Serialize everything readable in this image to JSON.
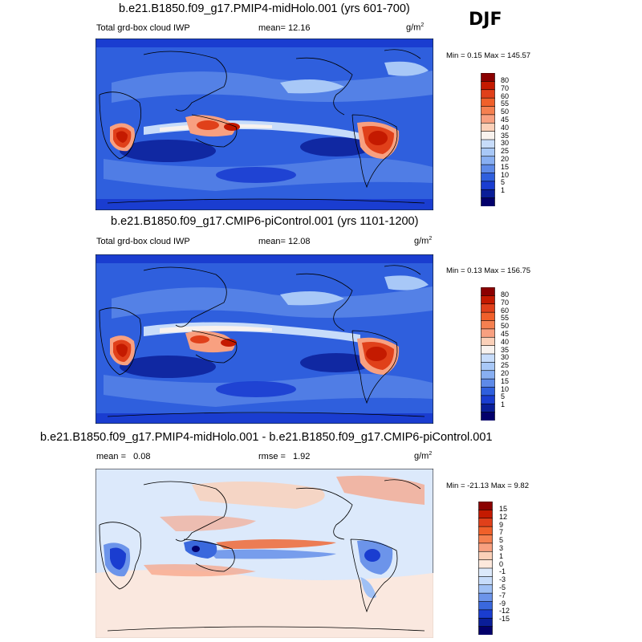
{
  "season": "DJF",
  "panels": [
    {
      "title": "b.e21.B1850.f09_g17.PMIP4-midHolo.001 (yrs 601-700)",
      "variable": "Total grd-box cloud IWP",
      "mean_label": "mean=",
      "mean": "12.16",
      "units_base": "g/m",
      "units_exp": "2",
      "minmax": "Min =  0.15 Max = 145.57",
      "levels": [
        "80",
        "70",
        "60",
        "55",
        "50",
        "45",
        "40",
        "35",
        "30",
        "25",
        "20",
        "15",
        "10",
        "5",
        "1"
      ],
      "colors": [
        "#8b0000",
        "#c41a00",
        "#e0401a",
        "#f0602a",
        "#f58050",
        "#f8a080",
        "#fbd0b8",
        "#f8f2ee",
        "#c7dcfa",
        "#a8c8f7",
        "#88aff2",
        "#5e8ae8",
        "#2f5fdd",
        "#1a3dd0",
        "#0a1e98",
        "#03006b"
      ]
    },
    {
      "title": "b.e21.B1850.f09_g17.CMIP6-piControl.001 (yrs 1101-1200)",
      "variable": "Total grd-box cloud IWP",
      "mean_label": "mean=",
      "mean": "12.08",
      "units_base": "g/m",
      "units_exp": "2",
      "minmax": "Min =  0.13 Max = 156.75",
      "levels": [
        "80",
        "70",
        "60",
        "55",
        "50",
        "45",
        "40",
        "35",
        "30",
        "25",
        "20",
        "15",
        "10",
        "5",
        "1"
      ],
      "colors": [
        "#8b0000",
        "#c41a00",
        "#e0401a",
        "#f0602a",
        "#f58050",
        "#f8a080",
        "#fbd0b8",
        "#f8f2ee",
        "#c7dcfa",
        "#a8c8f7",
        "#88aff2",
        "#5e8ae8",
        "#2f5fdd",
        "#1a3dd0",
        "#0a1e98",
        "#03006b"
      ]
    },
    {
      "title": "b.e21.B1850.f09_g17.PMIP4-midHolo.001 - b.e21.B1850.f09_g17.CMIP6-piControl.001",
      "variable": "",
      "mean_label": "mean =",
      "mean": "0.08",
      "rmse_label": "rmse =",
      "rmse": "1.92",
      "units_base": "g/m",
      "units_exp": "2",
      "minmax": "Min = -21.13 Max =  9.82",
      "levels": [
        "15",
        "12",
        "9",
        "7",
        "5",
        "3",
        "1",
        "0",
        "-1",
        "-3",
        "-5",
        "-7",
        "-9",
        "-12",
        "-15"
      ],
      "colors": [
        "#8b0000",
        "#c41a00",
        "#e0401a",
        "#f0602a",
        "#f58050",
        "#f8a080",
        "#fbd0b8",
        "#fde8dc",
        "#dce9fb",
        "#c7dcfa",
        "#9fc0f5",
        "#6c94ea",
        "#3a68dd",
        "#1a3dd0",
        "#0a1e98",
        "#03006b"
      ]
    }
  ]
}
